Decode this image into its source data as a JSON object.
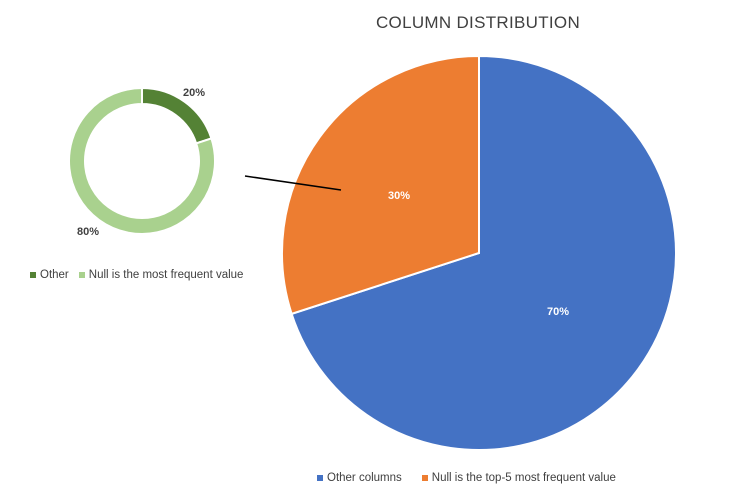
{
  "chart_data": [
    {
      "type": "pie",
      "title": "COLUMN DISTRIBUTION",
      "categories": [
        "Other columns",
        "Null is the top-5 most frequent value"
      ],
      "values": [
        70,
        30
      ],
      "value_labels": [
        "70%",
        "30%"
      ],
      "colors": [
        "#4472C4",
        "#ED7D31"
      ],
      "legend": "bottom"
    },
    {
      "type": "pie",
      "subtype": "doughnut",
      "title": "",
      "categories": [
        "Other",
        "Null is the most frequent value"
      ],
      "values": [
        20,
        80
      ],
      "value_labels": [
        "20%",
        "80%"
      ],
      "colors": [
        "#548235",
        "#A9D18E"
      ],
      "legend": "bottom",
      "linked_to": "Null is the top-5 most frequent value"
    }
  ]
}
